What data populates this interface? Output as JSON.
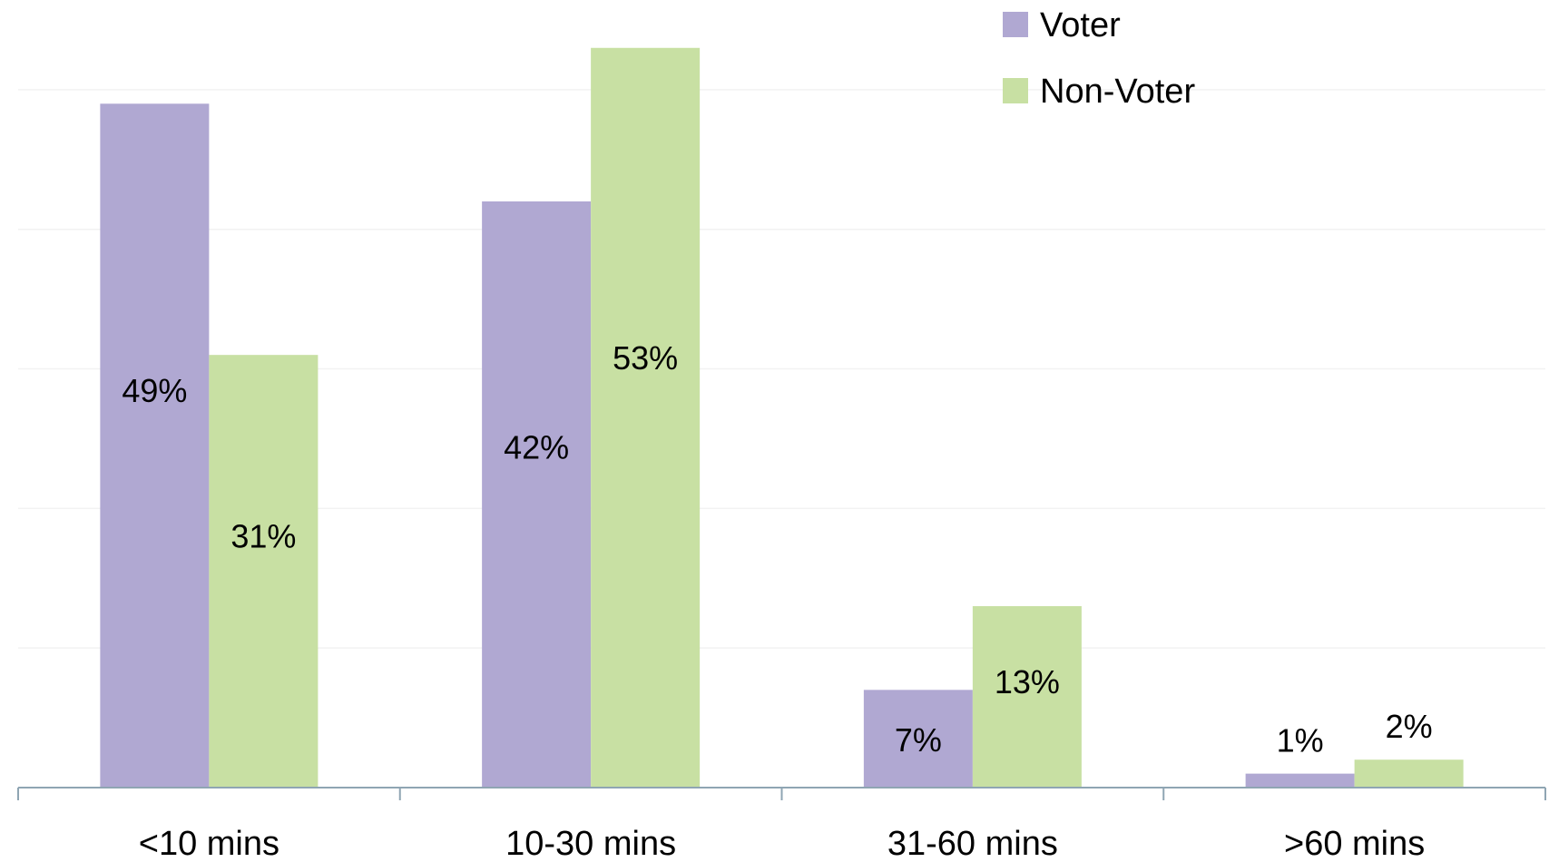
{
  "chart_data": {
    "type": "bar",
    "title": "",
    "xlabel": "",
    "ylabel": "",
    "ylim": [
      0,
      55
    ],
    "grid": true,
    "legend_position": "top-right",
    "categories": [
      "<10 mins",
      "10-30 mins",
      "31-60 mins",
      ">60 mins"
    ],
    "series": [
      {
        "name": "Voter",
        "color": "#b0a8d2",
        "values": [
          49,
          42,
          7,
          1
        ],
        "labels": [
          "49%",
          "42%",
          "7%",
          "1%"
        ]
      },
      {
        "name": "Non-Voter",
        "color": "#c8e0a3",
        "values": [
          31,
          53,
          13,
          2
        ],
        "labels": [
          "31%",
          "53%",
          "13%",
          "2%"
        ]
      }
    ]
  }
}
